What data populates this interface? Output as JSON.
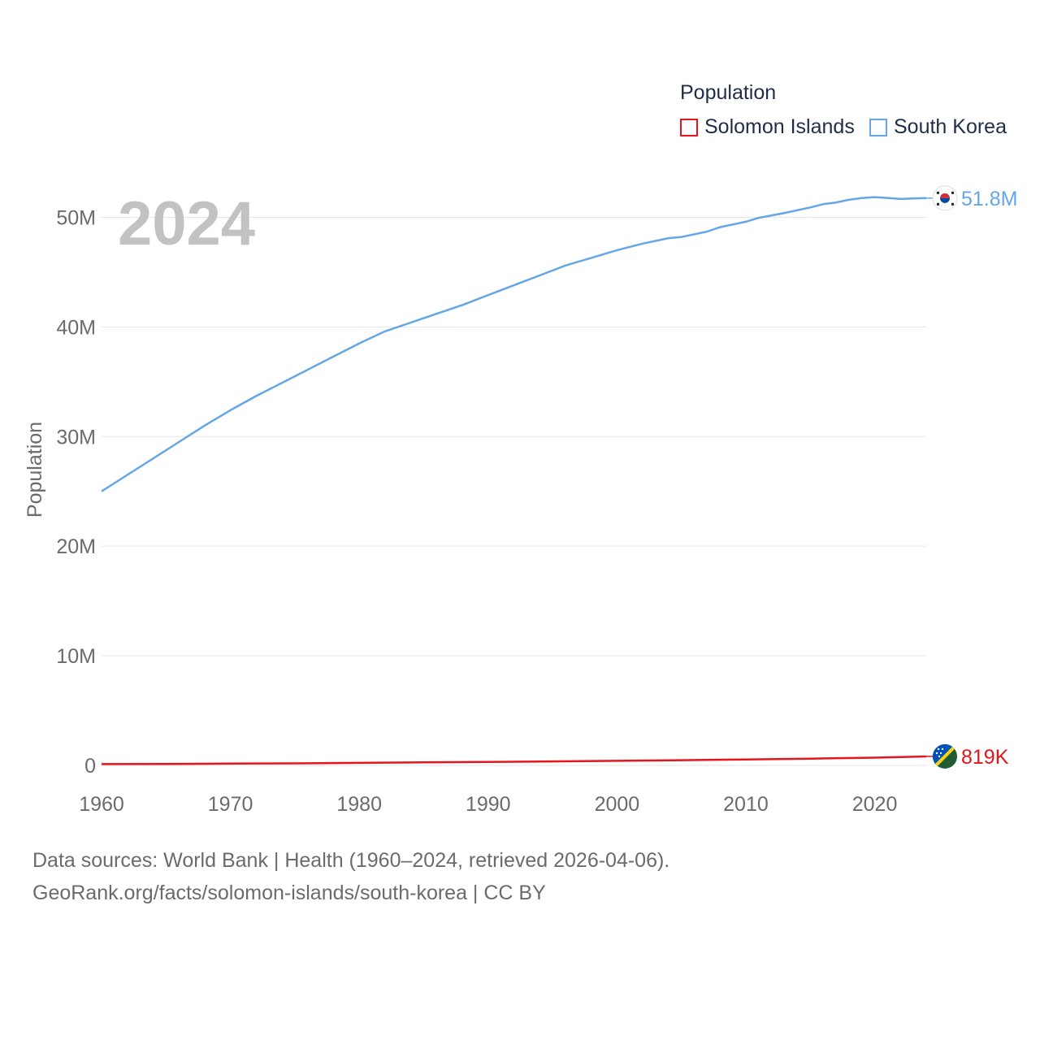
{
  "chart_data": {
    "type": "line",
    "legend_title": "Population",
    "ylabel": "Population",
    "xlabel": "",
    "year_label": "2024",
    "xlim": [
      1960,
      2024
    ],
    "ylim": [
      0,
      55000000
    ],
    "grid": true,
    "y_ticks": [
      {
        "value": 0,
        "label": "0"
      },
      {
        "value": 10000000,
        "label": "10M"
      },
      {
        "value": 20000000,
        "label": "20M"
      },
      {
        "value": 30000000,
        "label": "30M"
      },
      {
        "value": 40000000,
        "label": "40M"
      },
      {
        "value": 50000000,
        "label": "50M"
      }
    ],
    "x_ticks": [
      {
        "value": 1960,
        "label": "1960"
      },
      {
        "value": 1970,
        "label": "1970"
      },
      {
        "value": 1980,
        "label": "1980"
      },
      {
        "value": 1990,
        "label": "1990"
      },
      {
        "value": 2000,
        "label": "2000"
      },
      {
        "value": 2010,
        "label": "2010"
      },
      {
        "value": 2020,
        "label": "2020"
      }
    ],
    "series": [
      {
        "name": "Solomon Islands",
        "color": "#e8141c",
        "end_label": "819K",
        "flag": "solomon-islands-flag-icon",
        "x": [
          1960,
          1965,
          1970,
          1975,
          1980,
          1985,
          1990,
          1995,
          2000,
          2005,
          2010,
          2015,
          2020,
          2024
        ],
        "values": [
          118000,
          136000,
          160000,
          188000,
          230000,
          271000,
          312000,
          363000,
          413000,
          473000,
          540000,
          612000,
          704000,
          819000
        ]
      },
      {
        "name": "South Korea",
        "color": "#64a6e6",
        "end_label": "51.8M",
        "flag": "south-korea-flag-icon",
        "x": [
          1960,
          1962,
          1964,
          1966,
          1968,
          1970,
          1972,
          1974,
          1976,
          1978,
          1980,
          1982,
          1984,
          1986,
          1988,
          1990,
          1992,
          1994,
          1996,
          1998,
          2000,
          2002,
          2004,
          2005,
          2007,
          2008,
          2010,
          2011,
          2013,
          2015,
          2016,
          2017,
          2018,
          2019,
          2020,
          2021,
          2022,
          2023,
          2024
        ],
        "values": [
          25000000,
          26500000,
          28000000,
          29500000,
          31000000,
          32400000,
          33700000,
          34900000,
          36100000,
          37300000,
          38500000,
          39600000,
          40400000,
          41200000,
          42000000,
          42900000,
          43800000,
          44700000,
          45600000,
          46300000,
          47000000,
          47600000,
          48100000,
          48200000,
          48700000,
          49100000,
          49600000,
          49950000,
          50400000,
          50900000,
          51200000,
          51350000,
          51600000,
          51760000,
          51840000,
          51770000,
          51670000,
          51720000,
          51750000
        ]
      }
    ]
  },
  "footer": {
    "line1": "Data sources: World Bank | Health (1960–2024, retrieved 2026-04-06).",
    "line2": "GeoRank.org/facts/solomon-islands/south-korea | CC BY"
  }
}
